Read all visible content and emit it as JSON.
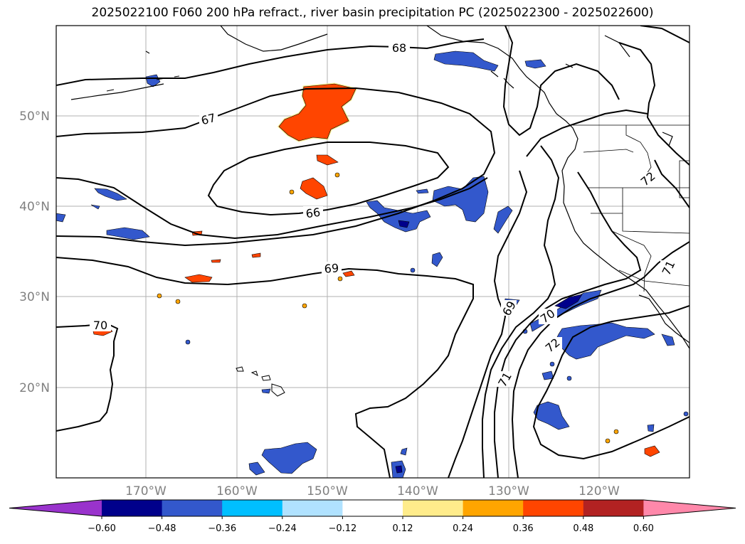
{
  "title": "2025022100 F060 200 hPa refract., river basin precipitation PC (2025022300 - 2025022600)",
  "map": {
    "lat_labels": [
      "50°N",
      "40°N",
      "30°N",
      "20°N"
    ],
    "lon_labels": [
      "170°W",
      "160°W",
      "150°W",
      "140°W",
      "130°W",
      "120°W"
    ],
    "contour_labels": [
      "68",
      "67",
      "66",
      "69",
      "70",
      "69",
      "70",
      "72",
      "71",
      "72",
      "71"
    ]
  },
  "colorbar": {
    "colors": [
      "#9933cc",
      "#00008b",
      "#3358cc",
      "#00bfff",
      "#b0e2ff",
      "#ffffff",
      "#ffec8b",
      "#ffa500",
      "#ff4500",
      "#b22222",
      "#ff88aa"
    ],
    "tick_labels": [
      "−0.60",
      "−0.48",
      "−0.36",
      "−0.24",
      "−0.12",
      "0.12",
      "0.24",
      "0.36",
      "0.48",
      "0.60"
    ]
  }
}
